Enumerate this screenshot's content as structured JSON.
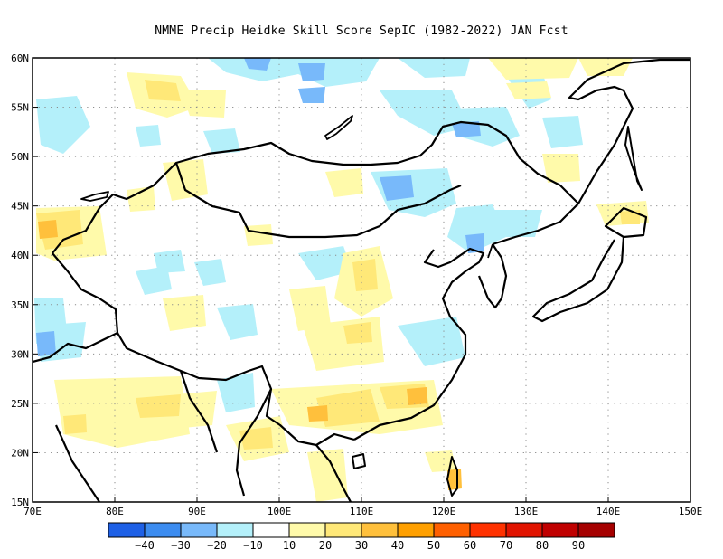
{
  "title": "NMME Precip Heidke Skill Score SepIC (1982-2022) JAN Fcst",
  "map": {
    "lon_range": [
      70,
      150
    ],
    "lat_range": [
      15,
      60
    ],
    "lon_ticks": [
      "70E",
      "80E",
      "90E",
      "100E",
      "110E",
      "120E",
      "130E",
      "140E",
      "150E"
    ],
    "lat_ticks": [
      "60N",
      "55N",
      "50N",
      "45N",
      "40N",
      "35N",
      "30N",
      "25N",
      "20N",
      "15N"
    ],
    "grid": "dotted"
  },
  "colorbar": {
    "colors": [
      "#1e60e6",
      "#3c8cf0",
      "#78b9fa",
      "#b4f0fa",
      "#ffffff",
      "#fffaaa",
      "#ffe878",
      "#ffc03c",
      "#ffa000",
      "#ff6000",
      "#ff3200",
      "#e11400",
      "#c00000",
      "#a50000"
    ],
    "labels": [
      "-40",
      "-30",
      "-20",
      "-10",
      "10",
      "20",
      "30",
      "40",
      "50",
      "60",
      "70",
      "80",
      "90"
    ]
  },
  "colors": {
    "light_blue": "#b4f0fa",
    "mid_blue": "#78b9fa",
    "blue": "#3c8cf0",
    "light_yellow": "#fffaaa",
    "yellow": "#ffe878",
    "orange": "#ffc03c"
  }
}
